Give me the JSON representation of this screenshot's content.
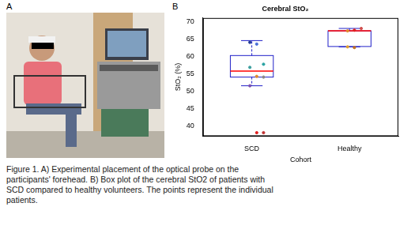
{
  "figure": {
    "panel_labels": [
      "A",
      "B"
    ],
    "caption": "Figure 1. A) Experimental placement of the optical probe on the participants' forehead. B) Box plot of the cerebral StO2 of patients with SCD compared to healthy volunteers. The points represent the individual patients."
  },
  "chart_data": {
    "type": "box",
    "title": "Cerebral StO₂",
    "x_label": "Cohort",
    "y_label": "StO₂ (%)",
    "categories": [
      "SCD",
      "Healthy"
    ],
    "boxes": [
      {
        "whisker_low": 51.5,
        "q1": 54,
        "median": 55.7,
        "q3": 60.2,
        "whisker_high": 64.5
      },
      {
        "whisker_low": 62.7,
        "q1": 62.8,
        "median": 67.3,
        "q3": 67.3,
        "whisker_high": 68
      }
    ],
    "points": [
      {
        "values": [
          64,
          63.5,
          57.7,
          56.8,
          54.2,
          54,
          51.5,
          38,
          38
        ],
        "colors": [
          "#1f3a93",
          "#4a6fd6",
          "#2aa3a3",
          "#3c9e9e",
          "#e08a2c",
          "#888888",
          "#7a4fb0",
          "#e02020",
          "#c03030"
        ]
      },
      {
        "values": [
          67.3,
          67.5,
          68,
          62.7,
          62.5
        ],
        "colors": [
          "#e08a2c",
          "#e02020",
          "#d05050",
          "#e0a030",
          "#c07020"
        ]
      }
    ],
    "color": "#2020c8",
    "ylim": [
      37,
      71
    ],
    "yticks": [
      40,
      45,
      50,
      55,
      60,
      65,
      70
    ],
    "grid": false
  }
}
